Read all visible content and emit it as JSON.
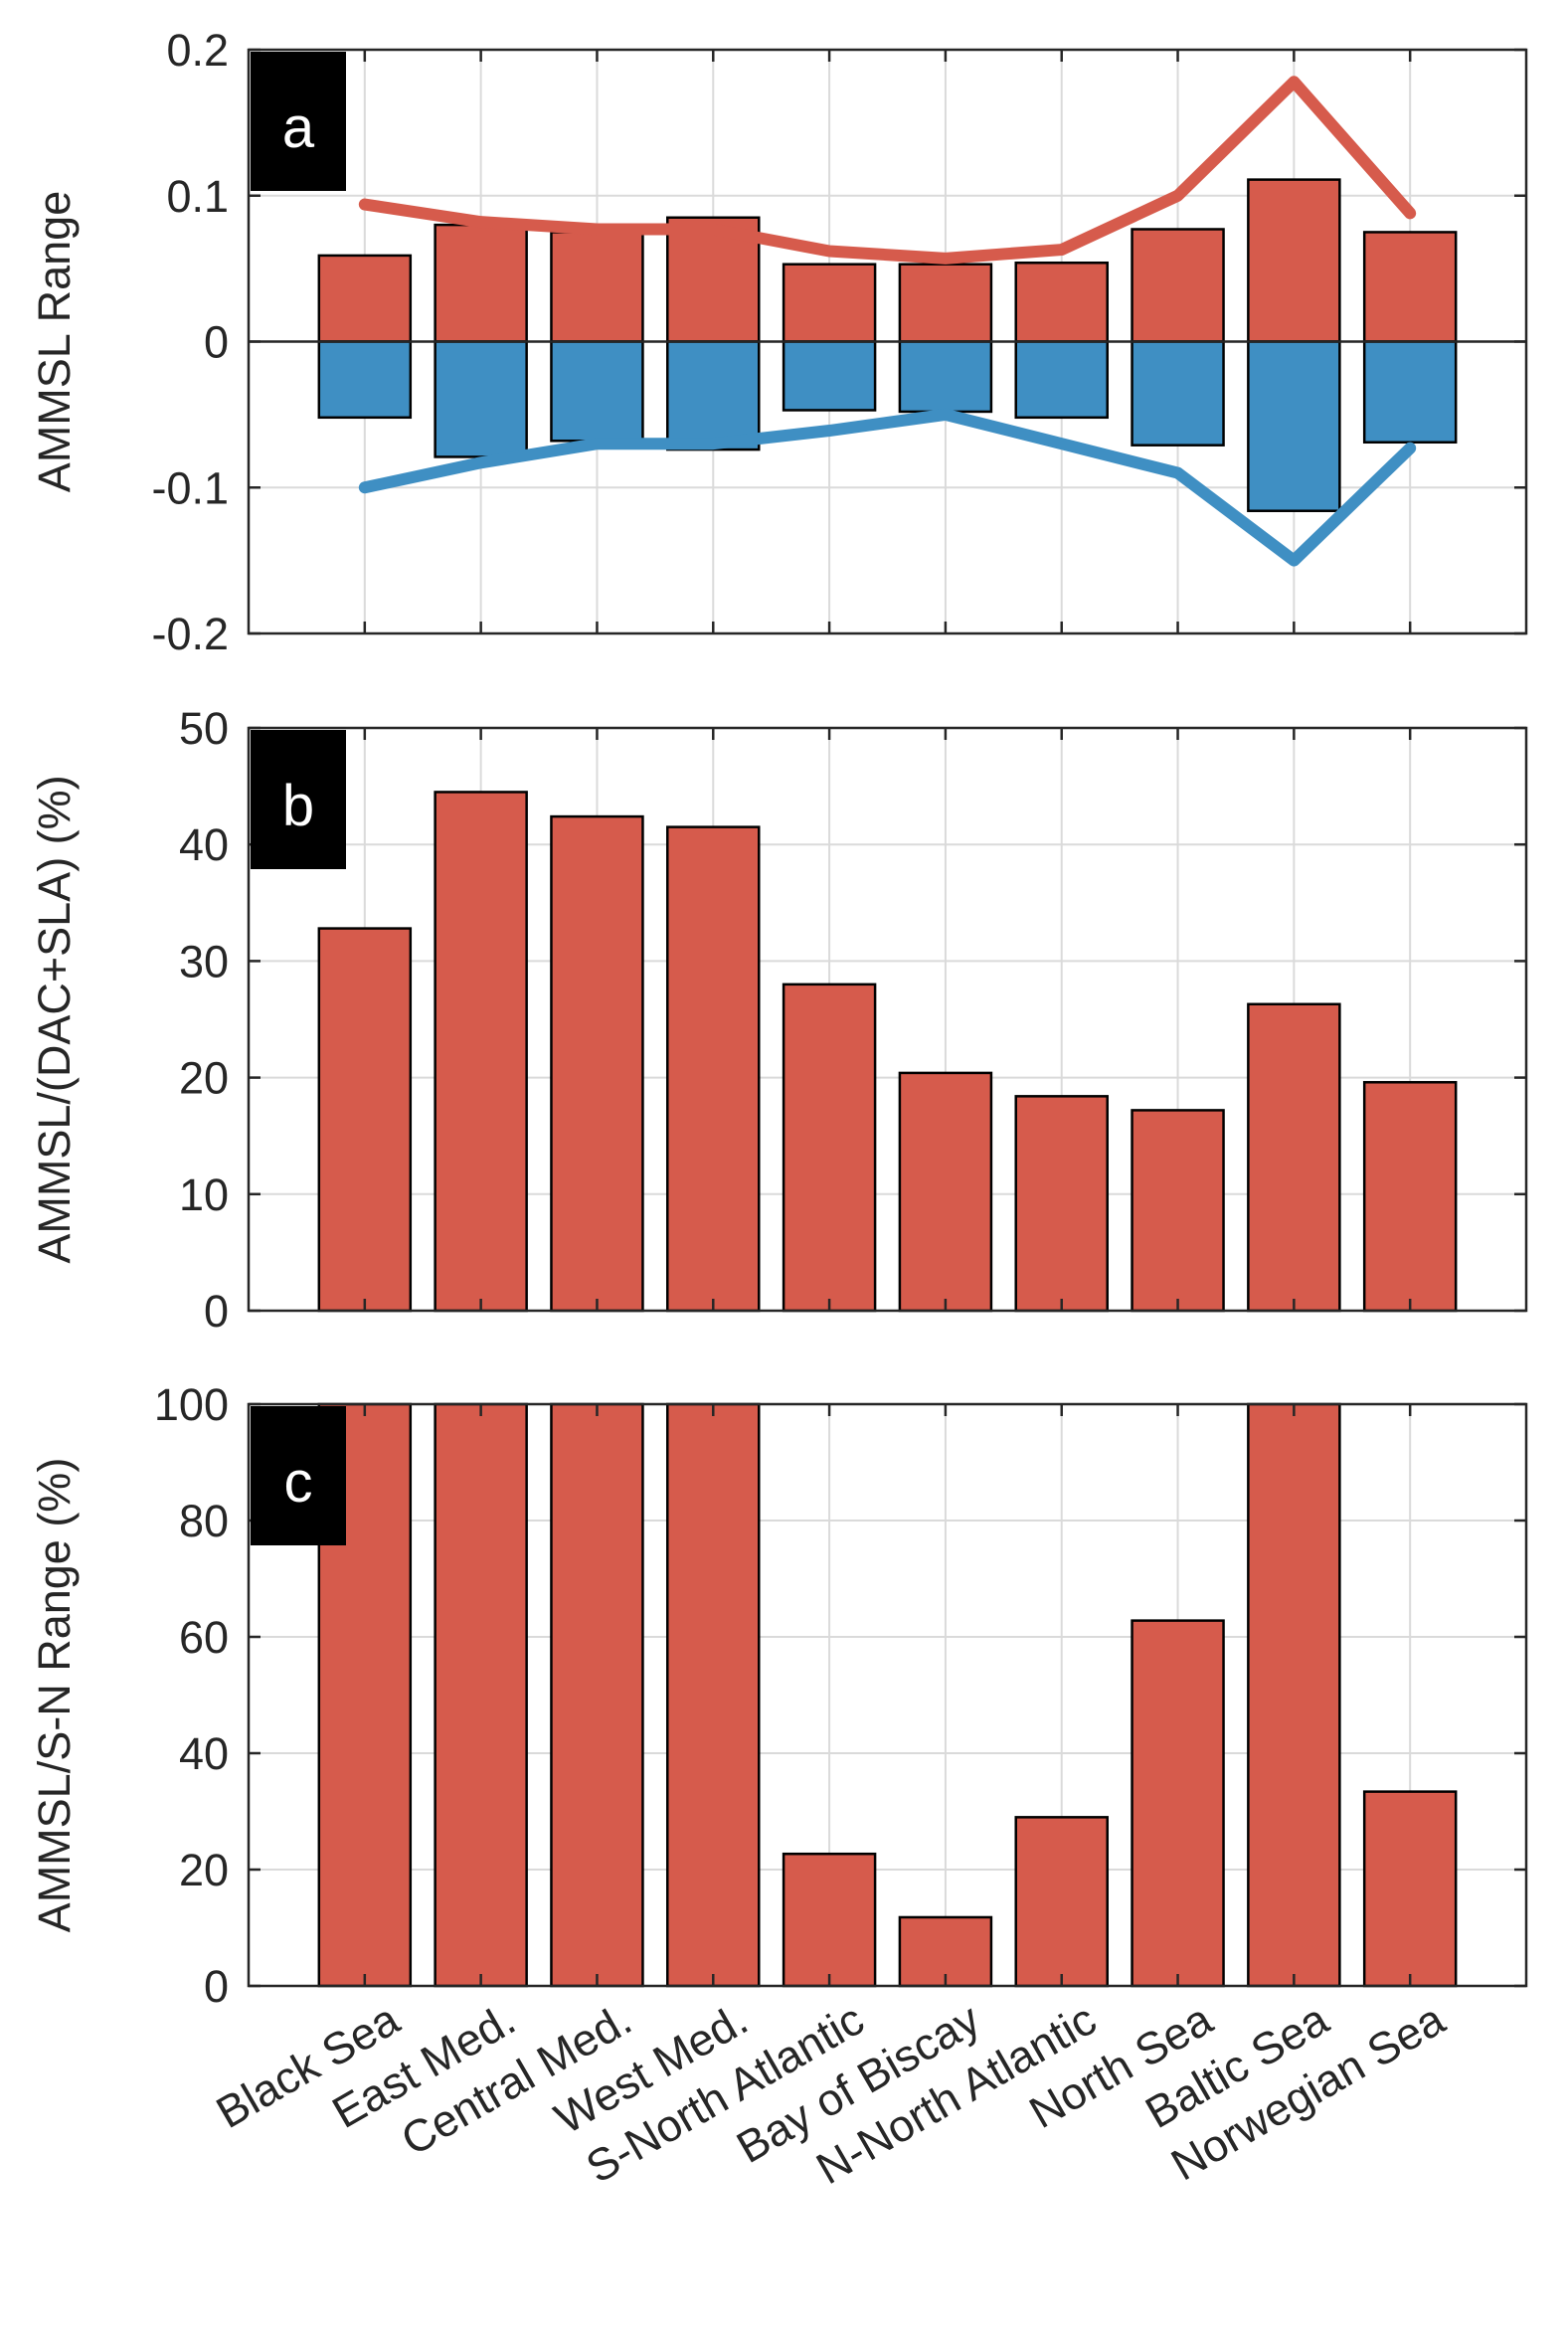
{
  "colors": {
    "red": "#d65b4c",
    "blue": "#3f8fc3",
    "label_bg": "#000000"
  },
  "chart_data": [
    {
      "panel": "a",
      "type": "bar",
      "ylabel": "AMMSL Range",
      "ylim": [
        -0.2,
        0.2
      ],
      "yticks": [
        0.2,
        0.1,
        0,
        -0.1,
        -0.2
      ],
      "ytick_labels": [
        "0.2",
        "0.1",
        "0",
        "-0.1",
        "-0.2"
      ],
      "categories": [
        "Black Sea",
        "East Med.",
        "Central Med.",
        "West Med.",
        "S-North Atlantic",
        "Bay of Biscay",
        "N-North Atlantic",
        "North Sea",
        "Baltic Sea",
        "Norwegian Sea"
      ],
      "series": [
        {
          "name": "positive range",
          "kind": "bar",
          "color": "red",
          "values": [
            0.059,
            0.08,
            0.075,
            0.085,
            0.053,
            0.053,
            0.054,
            0.077,
            0.111,
            0.075
          ]
        },
        {
          "name": "negative range",
          "kind": "bar",
          "color": "blue",
          "values": [
            -0.052,
            -0.079,
            -0.068,
            -0.074,
            -0.047,
            -0.048,
            -0.052,
            -0.071,
            -0.116,
            -0.069
          ]
        },
        {
          "name": "upper envelope",
          "kind": "line",
          "color": "red",
          "values": [
            0.094,
            0.082,
            0.077,
            0.077,
            0.062,
            0.057,
            0.063,
            0.1,
            0.178,
            0.088
          ]
        },
        {
          "name": "lower envelope",
          "kind": "line",
          "color": "blue",
          "values": [
            -0.1,
            -0.083,
            -0.07,
            -0.07,
            -0.061,
            -0.05,
            -0.07,
            -0.09,
            -0.15,
            -0.073
          ]
        }
      ]
    },
    {
      "panel": "b",
      "type": "bar",
      "ylabel": "AMMSL/(DAC+SLA) (%)",
      "ylim": [
        0,
        50
      ],
      "yticks": [
        50,
        40,
        30,
        20,
        10,
        0
      ],
      "ytick_labels": [
        "50",
        "40",
        "30",
        "20",
        "10",
        "0"
      ],
      "categories": [
        "Black Sea",
        "East Med.",
        "Central Med.",
        "West Med.",
        "S-North Atlantic",
        "Bay of Biscay",
        "N-North Atlantic",
        "North Sea",
        "Baltic Sea",
        "Norwegian Sea"
      ],
      "series": [
        {
          "name": "ratio",
          "kind": "bar",
          "color": "red",
          "values": [
            32.8,
            44.5,
            42.4,
            41.5,
            28.0,
            20.4,
            18.4,
            17.2,
            26.3,
            19.6
          ]
        }
      ]
    },
    {
      "panel": "c",
      "type": "bar",
      "ylabel": "AMMSL/S-N Range (%)",
      "ylim": [
        0,
        100
      ],
      "yticks": [
        100,
        80,
        60,
        40,
        20,
        0
      ],
      "ytick_labels": [
        "100",
        "80",
        "60",
        "40",
        "20",
        "0"
      ],
      "categories": [
        "Black Sea",
        "East Med.",
        "Central Med.",
        "West Med.",
        "S-North Atlantic",
        "Bay of Biscay",
        "N-North Atlantic",
        "North Sea",
        "Baltic Sea",
        "Norwegian Sea"
      ],
      "series": [
        {
          "name": "ratio",
          "kind": "bar",
          "color": "red",
          "values": [
            100,
            100,
            100,
            100,
            22.7,
            11.8,
            29.0,
            62.8,
            100,
            33.4
          ]
        }
      ]
    }
  ]
}
